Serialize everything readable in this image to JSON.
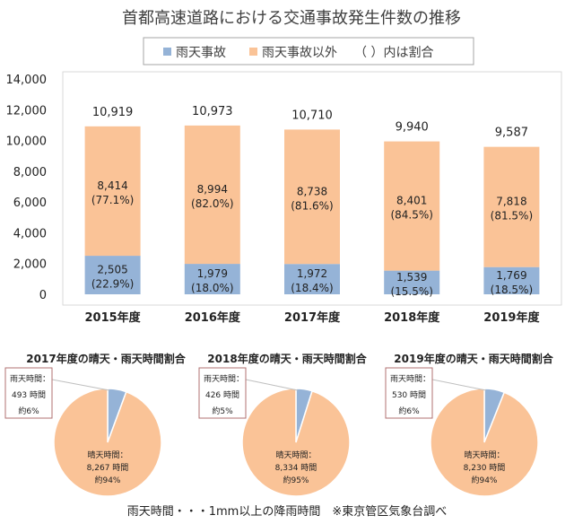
{
  "chart_data": [
    {
      "type": "bar",
      "stacked": true,
      "title": "首都高速道路における交通事故発生件数の推移",
      "legend": [
        "雨天事故",
        "雨天事故以外",
        "（ ）内は割合"
      ],
      "legend_position": "top",
      "categories": [
        "2015年度",
        "2016年度",
        "2017年度",
        "2018年度",
        "2019年度"
      ],
      "series": [
        {
          "name": "雨天事故",
          "color": "#95b3d7",
          "values": [
            2505,
            1979,
            1972,
            1539,
            1769
          ],
          "labels": [
            "2,505",
            "1,979",
            "1,972",
            "1,539",
            "1,769"
          ],
          "pct": [
            "(22.9%)",
            "(18.0%)",
            "(18.4%)",
            "(15.5%)",
            "(18.5%)"
          ]
        },
        {
          "name": "雨天事故以外",
          "color": "#fac397",
          "values": [
            8414,
            8994,
            8738,
            8401,
            7818
          ],
          "labels": [
            "8,414",
            "8,994",
            "8,738",
            "8,401",
            "7,818"
          ],
          "pct": [
            "(77.1%)",
            "(82.0%)",
            "(81.6%)",
            "(84.5%)",
            "(81.5%)"
          ]
        }
      ],
      "totals": [
        "10,919",
        "10,973",
        "10,710",
        "9,940",
        "9,587"
      ],
      "total_values": [
        10919,
        10973,
        10710,
        9940,
        9587
      ],
      "ylim": [
        0,
        14000
      ],
      "yticks": [
        "0",
        "2,000",
        "4,000",
        "6,000",
        "8,000",
        "10,000",
        "12,000",
        "14,000"
      ]
    },
    {
      "type": "pie",
      "title": "2017年度の晴天・雨天時間割合",
      "slices": [
        {
          "label": "雨天時間：",
          "value": 493,
          "value_label": "493 時間",
          "pct": "約6%",
          "color": "#95b3d7"
        },
        {
          "label": "晴天時間：",
          "value": 8267,
          "value_label": "8,267 時間",
          "pct": "約94%",
          "color": "#fac397"
        }
      ]
    },
    {
      "type": "pie",
      "title": "2018年度の晴天・雨天時間割合",
      "slices": [
        {
          "label": "雨天時間：",
          "value": 426,
          "value_label": "426 時間",
          "pct": "約5%",
          "color": "#95b3d7"
        },
        {
          "label": "晴天時間：",
          "value": 8334,
          "value_label": "8,334 時間",
          "pct": "約95%",
          "color": "#fac397"
        }
      ]
    },
    {
      "type": "pie",
      "title": "2019年度の晴天・雨天時間割合",
      "slices": [
        {
          "label": "雨天時間：",
          "value": 530,
          "value_label": "530 時間",
          "pct": "約6%",
          "color": "#95b3d7"
        },
        {
          "label": "晴天時間：",
          "value": 8230,
          "value_label": "8,230 時間",
          "pct": "約94%",
          "color": "#fac397"
        }
      ]
    }
  ],
  "footnote": "雨天時間・・・1mm以上の降雨時間　※東京管区気象台調べ"
}
